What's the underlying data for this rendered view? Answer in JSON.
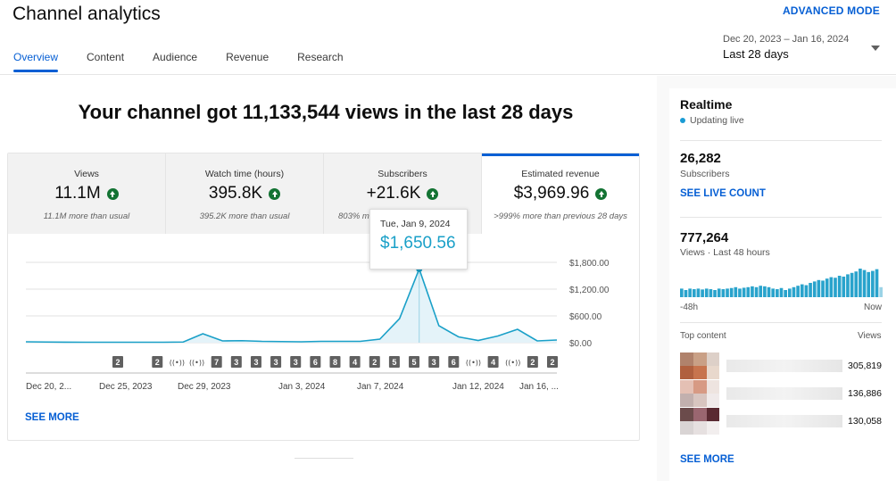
{
  "app": {
    "title": "Channel analytics",
    "advanced_mode": "ADVANCED MODE"
  },
  "tabs": [
    {
      "label": "Overview",
      "active": true
    },
    {
      "label": "Content",
      "active": false
    },
    {
      "label": "Audience",
      "active": false
    },
    {
      "label": "Revenue",
      "active": false
    },
    {
      "label": "Research",
      "active": false
    }
  ],
  "date_range": {
    "range": "Dec 20, 2023 – Jan 16, 2024",
    "label": "Last 28 days"
  },
  "headline": "Your channel got 11,133,544 views in the last 28 days",
  "metrics": [
    {
      "label": "Views",
      "value": "11.1M",
      "sub": "11.1M more than usual",
      "trend": "up",
      "selected": false
    },
    {
      "label": "Watch time (hours)",
      "value": "395.8K",
      "sub": "395.2K more than usual",
      "trend": "up",
      "selected": false
    },
    {
      "label": "Subscribers",
      "value": "+21.6K",
      "sub": "803% m",
      "trend": "up",
      "selected": false
    },
    {
      "label": "Estimated revenue",
      "value": "$3,969.96",
      "sub": ">999% more than previous 28 days",
      "trend": "up",
      "selected": true
    }
  ],
  "tooltip": {
    "date": "Tue, Jan 9, 2024",
    "value": "$1,650.56"
  },
  "chart_data": {
    "type": "area",
    "title": "",
    "xlabel": "",
    "ylabel": "",
    "ylim": [
      0,
      1800
    ],
    "y_ticks": [
      "$1,800.00",
      "$1,200.00",
      "$600.00",
      "$0.00"
    ],
    "x_tick_labels": [
      "Dec 20, 2...",
      "Dec 25, 2023",
      "Dec 29, 2023",
      "Jan 3, 2024",
      "Jan 7, 2024",
      "Jan 12, 2024",
      "Jan 16, ..."
    ],
    "x": [
      "Dec 20",
      "Dec 21",
      "Dec 22",
      "Dec 23",
      "Dec 24",
      "Dec 25",
      "Dec 26",
      "Dec 27",
      "Dec 28",
      "Dec 29",
      "Dec 30",
      "Dec 31",
      "Jan 1",
      "Jan 2",
      "Jan 3",
      "Jan 4",
      "Jan 5",
      "Jan 6",
      "Jan 7",
      "Jan 8",
      "Jan 9",
      "Jan 10",
      "Jan 11",
      "Jan 12",
      "Jan 13",
      "Jan 14",
      "Jan 15",
      "Jan 16"
    ],
    "values": [
      20,
      15,
      12,
      10,
      10,
      10,
      10,
      10,
      15,
      200,
      40,
      45,
      30,
      25,
      20,
      30,
      30,
      30,
      80,
      540,
      1650.56,
      380,
      130,
      50,
      150,
      300,
      40,
      60
    ],
    "highlight_index": 20,
    "grid": true,
    "markers": [
      "2",
      "",
      "2",
      "((•))",
      "((•))",
      "7",
      "3",
      "3",
      "3",
      "3",
      "6",
      "8",
      "4",
      "2",
      "5",
      "5",
      "3",
      "6",
      "((•))",
      "4",
      "((•))",
      "2",
      "2"
    ],
    "color": "#1aa0c8"
  },
  "see_more": "SEE MORE",
  "realtime": {
    "title": "Realtime",
    "live": "Updating live",
    "subs_value": "26,282",
    "subs_label": "Subscribers",
    "live_count": "SEE LIVE COUNT",
    "views_value": "777,264",
    "views_label": "Views · Last 48 hours",
    "axis_left": "-48h",
    "axis_right": "Now",
    "bars": [
      0.3,
      0.25,
      0.3,
      0.28,
      0.3,
      0.27,
      0.3,
      0.28,
      0.25,
      0.3,
      0.28,
      0.3,
      0.32,
      0.35,
      0.3,
      0.33,
      0.35,
      0.38,
      0.35,
      0.4,
      0.38,
      0.35,
      0.3,
      0.28,
      0.32,
      0.25,
      0.3,
      0.35,
      0.4,
      0.45,
      0.42,
      0.5,
      0.55,
      0.6,
      0.58,
      0.65,
      0.7,
      0.68,
      0.75,
      0.72,
      0.8,
      0.85,
      0.9,
      1.0,
      0.95,
      0.88,
      0.92,
      0.98,
      0.35
    ],
    "top_content_label": "Top content",
    "views_col_label": "Views",
    "top_content": [
      {
        "views": "305,819"
      },
      {
        "views": "136,886"
      },
      {
        "views": "130,058"
      }
    ],
    "see_more": "SEE MORE"
  }
}
